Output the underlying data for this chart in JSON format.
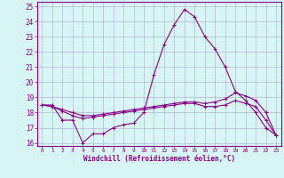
{
  "xlabel": "Windchill (Refroidissement éolien,°C)",
  "hours": [
    0,
    1,
    2,
    3,
    4,
    5,
    6,
    7,
    8,
    9,
    10,
    11,
    12,
    13,
    14,
    15,
    16,
    17,
    18,
    19,
    20,
    21,
    22,
    23
  ],
  "line1": [
    18.5,
    18.5,
    17.5,
    17.5,
    16.0,
    16.6,
    16.6,
    17.0,
    17.2,
    17.3,
    18.0,
    20.5,
    22.5,
    23.8,
    24.8,
    24.3,
    23.0,
    22.2,
    21.0,
    19.4,
    18.8,
    18.0,
    17.0,
    16.5
  ],
  "line2": [
    18.5,
    18.4,
    18.1,
    17.8,
    17.6,
    17.7,
    17.8,
    17.9,
    18.0,
    18.1,
    18.2,
    18.3,
    18.4,
    18.5,
    18.6,
    18.6,
    18.4,
    18.4,
    18.5,
    18.8,
    18.6,
    18.4,
    17.5,
    16.5
  ],
  "line3": [
    18.5,
    18.4,
    18.2,
    18.0,
    17.8,
    17.8,
    17.9,
    18.0,
    18.1,
    18.2,
    18.3,
    18.4,
    18.5,
    18.6,
    18.7,
    18.7,
    18.6,
    18.7,
    18.9,
    19.3,
    19.1,
    18.8,
    18.0,
    16.5
  ],
  "line_color": "#880088",
  "bg_color": "#d8f5f5",
  "grid_color": "#aaaacc",
  "ylim": [
    15.8,
    25.3
  ],
  "xlim": [
    -0.5,
    23.5
  ]
}
